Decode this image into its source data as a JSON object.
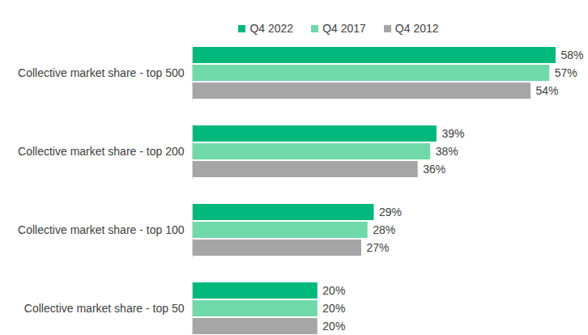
{
  "chart_data": {
    "type": "bar",
    "orientation": "horizontal",
    "categories": [
      "Collective market share - top 500",
      "Collective market share - top 200",
      "Collective market share - top 100",
      "Collective market share - top 50"
    ],
    "series": [
      {
        "name": "Q4 2022",
        "color": "#00b87c",
        "values": [
          58,
          39,
          29,
          20
        ],
        "value_labels": [
          "58%",
          "39%",
          "29%",
          "20%"
        ]
      },
      {
        "name": "Q4 2017",
        "color": "#6fd9a9",
        "values": [
          57,
          38,
          28,
          20
        ],
        "value_labels": [
          "57%",
          "38%",
          "28%",
          "20%"
        ]
      },
      {
        "name": "Q4 2012",
        "color": "#a6a6a6",
        "values": [
          54,
          36,
          27,
          20
        ],
        "value_labels": [
          "54%",
          "36%",
          "27%",
          "20%"
        ]
      }
    ],
    "data_labels": true,
    "legend": "top",
    "tick_labels": "y"
  }
}
